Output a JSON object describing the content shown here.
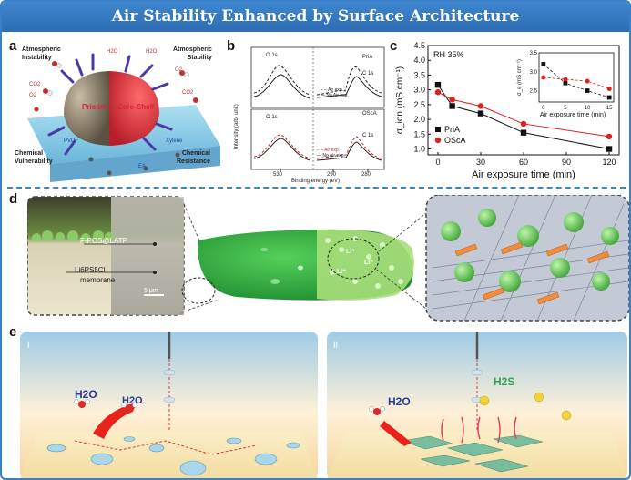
{
  "title": "Air Stability Enhanced by Surface Architecture",
  "panels": {
    "a": {
      "label": "a",
      "instability": [
        "Atmospheric",
        "Instability"
      ],
      "stability": [
        "Atmospheric",
        "Stability"
      ],
      "vulnerability": [
        "Chemical",
        "Vulnerability"
      ],
      "resistance": [
        "Chemical",
        "Resistance"
      ],
      "pristine": "Pristine",
      "coreshell": "Core-Shell",
      "molecules": {
        "h2o_a": "H2O",
        "h2o_b": "H2O",
        "co2_a": "CO2",
        "o2_a": "O2",
        "co2_b": "CO2",
        "o2_b": "O2",
        "pvdf": "PVDF",
        "xylene": "Xylene",
        "ea": "EA"
      }
    },
    "b": {
      "label": "b",
      "ylabel": "Intensity (arb. unit)",
      "xlabel": "Binding energy (eV)",
      "ticks": [
        "530",
        "290",
        "280"
      ],
      "top": {
        "o1s": "O 1s",
        "c1s": "C 1s",
        "sample": "PriA",
        "legend": [
          "Air exp.",
          "No Air exp."
        ]
      },
      "bottom": {
        "o1s": "O 1s",
        "c1s": "C 1s",
        "sample": "OScA",
        "legend": [
          "Air exp.",
          "No Air exp."
        ]
      }
    },
    "c": {
      "label": "c",
      "condition": "RH 35%",
      "inset_xlabel": "Air exposure time (min)",
      "inset_ylabel": "σ_e (mS cm⁻¹)"
    },
    "d": {
      "label": "d",
      "layer_label": "F-POS@LATP",
      "membrane_label": "Li6PS5Cl",
      "membrane_word": "membrane",
      "scale_bar": "5 μm",
      "li_labels": [
        "Li⁺",
        "Li⁺",
        "Li⁺"
      ]
    },
    "e": {
      "label": "e",
      "left": {
        "roman": "I",
        "h2o_a": "H2O",
        "h2o_b": "H2O"
      },
      "right": {
        "roman": "II",
        "h2o": "H2O",
        "h2s": "H2S"
      }
    }
  },
  "chart_data": {
    "type": "line",
    "title": "",
    "xlabel": "Air exposure time (min)",
    "ylabel": "σ_ion (mS cm⁻¹)",
    "x": [
      0,
      10,
      30,
      60,
      120
    ],
    "xticks": [
      0,
      30,
      60,
      90,
      120
    ],
    "yticks": [
      1.0,
      1.5,
      2.0,
      2.5,
      3.0,
      3.5,
      4.0,
      4.5
    ],
    "xlim": [
      -7,
      127
    ],
    "ylim": [
      0.8,
      4.5
    ],
    "series": [
      {
        "name": "PriA",
        "marker": "square",
        "color": "#111111",
        "values": [
          3.17,
          2.45,
          2.2,
          1.55,
          1.0
        ]
      },
      {
        "name": "OScA",
        "marker": "circle",
        "color": "#e02020",
        "values": [
          2.92,
          2.67,
          2.45,
          1.85,
          1.42
        ]
      }
    ],
    "inset": {
      "type": "line",
      "xlabel": "Air exposure time (min)",
      "ylabel": "σ_e (mS cm⁻¹)",
      "x": [
        0,
        5,
        10,
        15
      ],
      "xticks": [
        0,
        5,
        10,
        15
      ],
      "yticks": [
        2.5,
        3.0,
        3.5
      ],
      "xlim": [
        -1,
        16
      ],
      "ylim": [
        2.2,
        3.5
      ],
      "series": [
        {
          "name": "PriA",
          "marker": "square",
          "color": "#111111",
          "values": [
            3.2,
            2.7,
            2.5,
            2.32
          ]
        },
        {
          "name": "OScA",
          "marker": "circle",
          "color": "#e02020",
          "values": [
            2.85,
            2.8,
            2.75,
            2.55
          ]
        }
      ]
    }
  }
}
